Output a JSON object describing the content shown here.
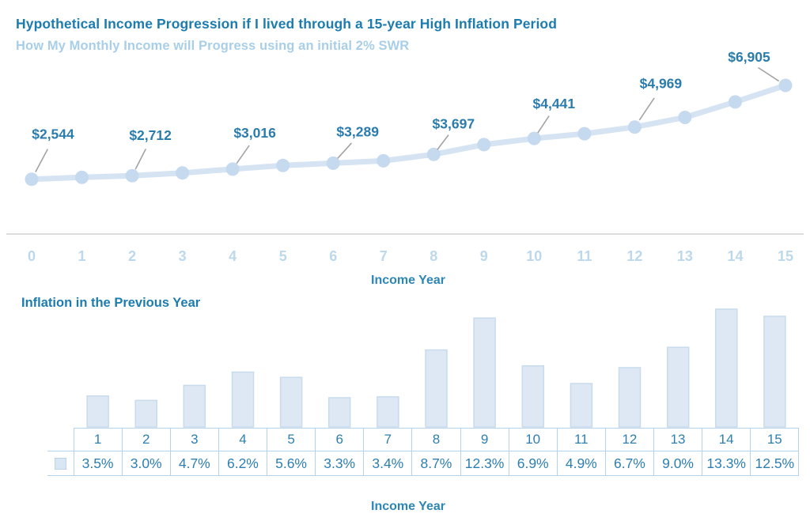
{
  "header": {
    "title": "Hypothetical Income Progression if I lived through a 15-year High Inflation Period",
    "subtitle": "How My Monthly Income will Progress using an initial 2% SWR"
  },
  "chart_data": [
    {
      "type": "line",
      "title": "Hypothetical Income Progression if I lived through a 15-year High Inflation Period",
      "subtitle": "How My Monthly Income will Progress using an initial 2% SWR",
      "xlabel": "Income Year",
      "x": [
        0,
        1,
        2,
        3,
        4,
        5,
        6,
        7,
        8,
        9,
        10,
        11,
        12,
        13,
        14,
        15
      ],
      "series": [
        {
          "name": "Monthly Income",
          "values": [
            2544,
            2633,
            2712,
            2840,
            3016,
            3185,
            3289,
            3401,
            3697,
            4152,
            4441,
            4659,
            4969,
            5416,
            6136,
            6905
          ]
        }
      ],
      "point_labels": [
        {
          "x": 0,
          "text": "$2,544"
        },
        {
          "x": 2,
          "text": "$2,712"
        },
        {
          "x": 4,
          "text": "$3,016"
        },
        {
          "x": 6,
          "text": "$3,289"
        },
        {
          "x": 8,
          "text": "$3,697"
        },
        {
          "x": 10,
          "text": "$4,441"
        },
        {
          "x": 12,
          "text": "$4,969"
        },
        {
          "x": 15,
          "text": "$6,905"
        }
      ],
      "ylim": [
        0,
        7200
      ],
      "grid": false,
      "legend_position": "none"
    },
    {
      "type": "bar",
      "title": "Inflation in the Previous Year",
      "xlabel": "Income Year",
      "categories": [
        "1",
        "2",
        "3",
        "4",
        "5",
        "6",
        "7",
        "8",
        "9",
        "10",
        "11",
        "12",
        "13",
        "14",
        "15"
      ],
      "values": [
        3.5,
        3.0,
        4.7,
        6.2,
        5.6,
        3.3,
        3.4,
        8.7,
        12.3,
        6.9,
        4.9,
        6.7,
        9.0,
        13.3,
        12.5
      ],
      "value_labels": [
        "3.5%",
        "3.0%",
        "4.7%",
        "6.2%",
        "5.6%",
        "3.3%",
        "3.4%",
        "8.7%",
        "12.3%",
        "6.9%",
        "4.9%",
        "6.7%",
        "9.0%",
        "13.3%",
        "12.5%"
      ],
      "ylim": [
        0,
        14
      ],
      "grid": false,
      "legend_position": "table-left"
    }
  ],
  "colors": {
    "title_teal": "#1d7cae",
    "subtitle_light_blue": "#a9cfe8",
    "label_teal": "#2a7cad",
    "axis_title_teal": "#2e86b4",
    "tick_label_light_blue": "#bdd8eb",
    "line_light_blue": "#d5e3f3",
    "marker_blue": "#c5d9ef",
    "leader_gray": "#a3a3a3",
    "axis_line_gray": "#dcdcdc",
    "bar_fill": "#dde8f4",
    "bar_stroke": "#c8dbed",
    "table_border": "#b6d2e8",
    "table_text": "#2e7fb0"
  }
}
